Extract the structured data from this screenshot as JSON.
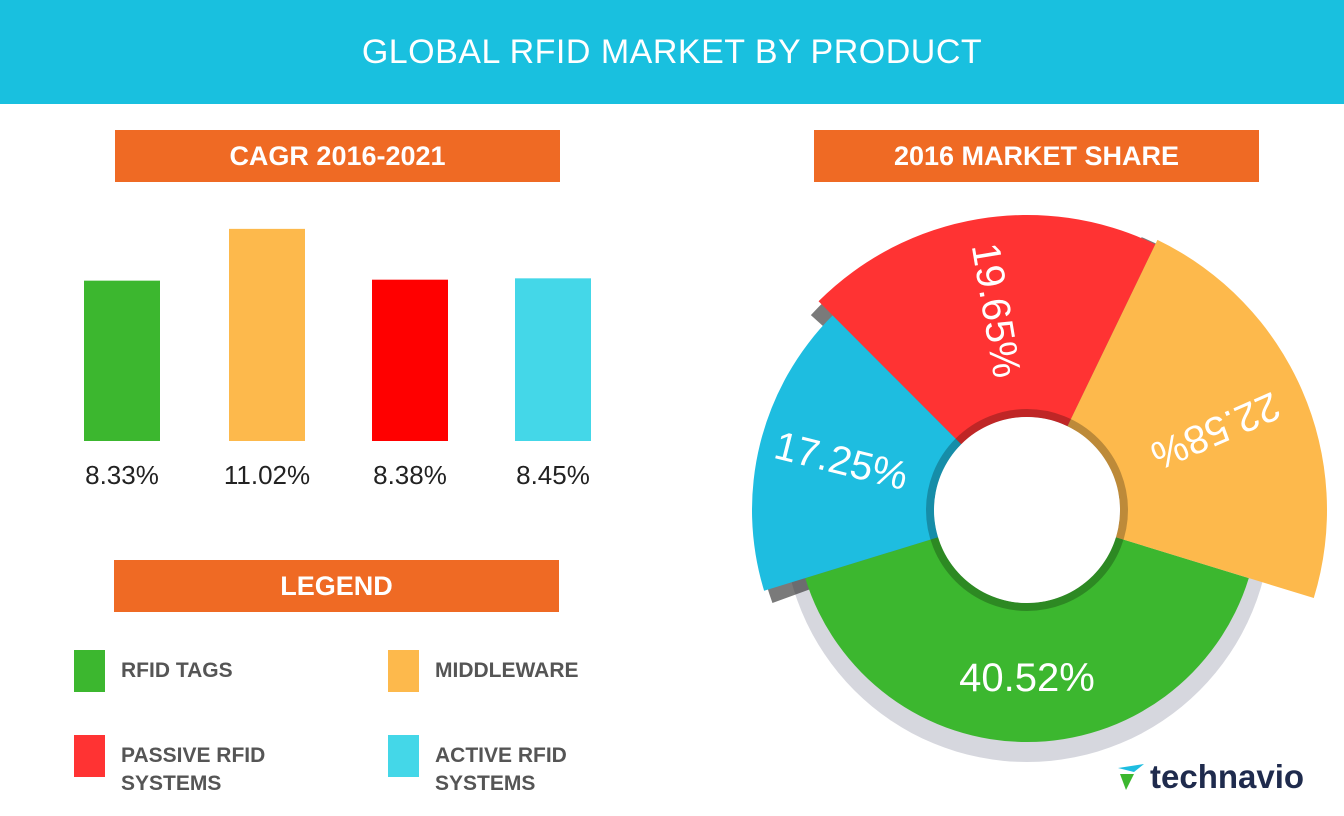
{
  "title": "GLOBAL RFID MARKET BY PRODUCT",
  "chart_data": [
    {
      "type": "bar",
      "title": "CAGR 2016-2021",
      "values": [
        8.33,
        11.02,
        8.38,
        8.45
      ],
      "value_labels": [
        "8.33%",
        "11.02%",
        "8.38%",
        "8.45%"
      ],
      "colors": [
        "#3cb72f",
        "#fdb94c",
        "#ff0000",
        "#44d7e8"
      ],
      "ylim": [
        0,
        12
      ]
    },
    {
      "type": "pie",
      "title": "2016 MARKET SHARE",
      "values": [
        40.52,
        17.25,
        19.65,
        22.58
      ],
      "value_labels": [
        "40.52%",
        "17.25%",
        "19.65%",
        "22.58%"
      ],
      "colors": [
        "#3cb72f",
        "#1ebde0",
        "#ff3333",
        "#fdb94c"
      ]
    }
  ],
  "legend": {
    "title": "LEGEND",
    "items": [
      {
        "name": "RFID TAGS",
        "color": "#3cb72f"
      },
      {
        "name": "MIDDLEWARE",
        "color": "#fdb94c"
      },
      {
        "name": "PASSIVE RFID SYSTEMS",
        "color": "#ff3333"
      },
      {
        "name": "ACTIVE RFID SYSTEMS",
        "color": "#44d7e8"
      }
    ]
  },
  "brand": "technavio"
}
